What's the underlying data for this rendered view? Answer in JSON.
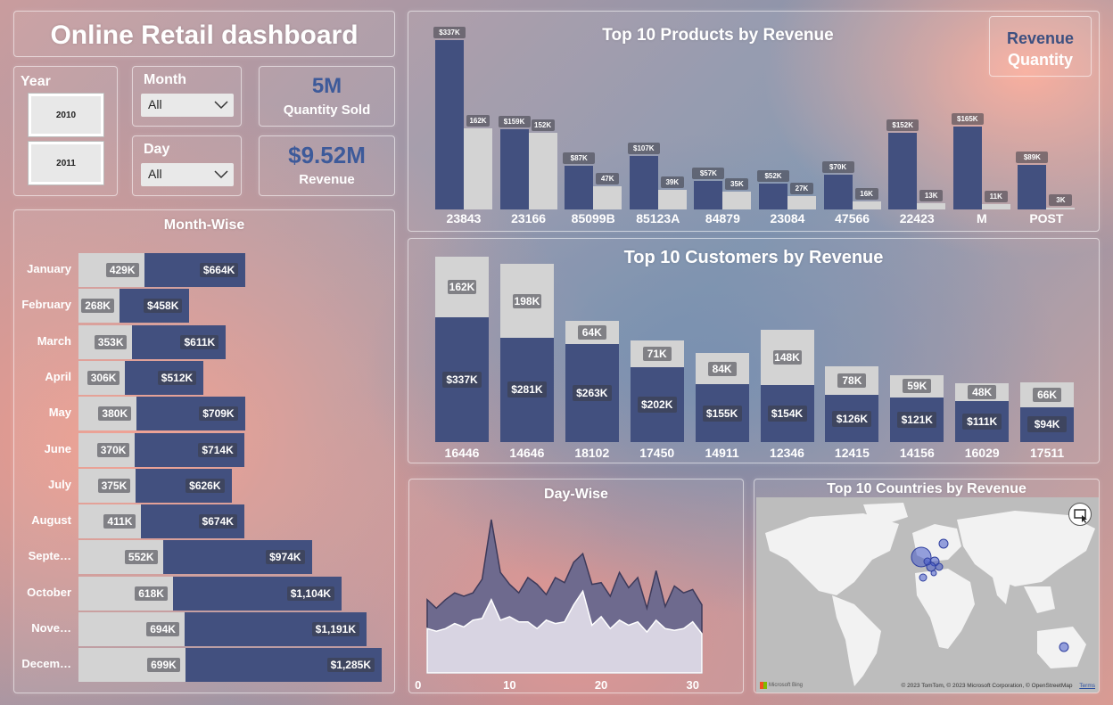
{
  "header": {
    "title": "Online Retail dashboard"
  },
  "colors": {
    "revenue": "#42507f",
    "quantity": "#d3d3d3",
    "kpi": "#3d5a9a"
  },
  "year_slicer": {
    "label": "Year",
    "options": [
      "2010",
      "2011"
    ]
  },
  "month_slicer": {
    "label": "Month",
    "value": "All"
  },
  "day_slicer": {
    "label": "Day",
    "value": "All"
  },
  "kpis": {
    "quantity": {
      "value": "5M",
      "label": "Quantity Sold"
    },
    "revenue": {
      "value": "$9.52M",
      "label": "Revenue"
    }
  },
  "toggle": {
    "revenue_label": "Revenue",
    "quantity_label": "Quantity"
  },
  "icons": {
    "dropdown": "chevron-down-icon",
    "focus": "focus-mode-icon"
  },
  "month_wise": {
    "title": "Month-Wise",
    "rows": [
      {
        "month": "January",
        "qty_label": "429K",
        "rev_label": "$664K",
        "qty": 429,
        "rev": 664
      },
      {
        "month": "February",
        "qty_label": "268K",
        "rev_label": "$458K",
        "qty": 268,
        "rev": 458
      },
      {
        "month": "March",
        "qty_label": "353K",
        "rev_label": "$611K",
        "qty": 353,
        "rev": 611
      },
      {
        "month": "April",
        "qty_label": "306K",
        "rev_label": "$512K",
        "qty": 306,
        "rev": 512
      },
      {
        "month": "May",
        "qty_label": "380K",
        "rev_label": "$709K",
        "qty": 380,
        "rev": 709
      },
      {
        "month": "June",
        "qty_label": "370K",
        "rev_label": "$714K",
        "qty": 370,
        "rev": 714
      },
      {
        "month": "July",
        "qty_label": "375K",
        "rev_label": "$626K",
        "qty": 375,
        "rev": 626
      },
      {
        "month": "August",
        "qty_label": "411K",
        "rev_label": "$674K",
        "qty": 411,
        "rev": 674
      },
      {
        "month": "Septe…",
        "qty_label": "552K",
        "rev_label": "$974K",
        "qty": 552,
        "rev": 974
      },
      {
        "month": "October",
        "qty_label": "618K",
        "rev_label": "$1,104K",
        "qty": 618,
        "rev": 1104
      },
      {
        "month": "Nove…",
        "qty_label": "694K",
        "rev_label": "$1,191K",
        "qty": 694,
        "rev": 1191
      },
      {
        "month": "Decem…",
        "qty_label": "699K",
        "rev_label": "$1,285K",
        "qty": 699,
        "rev": 1285
      }
    ]
  },
  "chart_data": [
    {
      "type": "bar",
      "title": "Top 10 Products by Revenue",
      "categories": [
        "23843",
        "23166",
        "85099B",
        "85123A",
        "84879",
        "23084",
        "47566",
        "22423",
        "M",
        "POST"
      ],
      "series": [
        {
          "name": "Revenue",
          "values": [
            337,
            159,
            87,
            107,
            57,
            52,
            70,
            152,
            165,
            89
          ],
          "labels": [
            "$337K",
            "$159K",
            "$87K",
            "$107K",
            "$57K",
            "$52K",
            "$70K",
            "$152K",
            "$165K",
            "$89K"
          ]
        },
        {
          "name": "Quantity",
          "values": [
            162,
            152,
            47,
            39,
            35,
            27,
            16,
            13,
            11,
            3
          ],
          "labels": [
            "162K",
            "152K",
            "47K",
            "39K",
            "35K",
            "27K",
            "16K",
            "13K",
            "11K",
            "3K"
          ]
        }
      ]
    },
    {
      "type": "bar",
      "title": "Top 10 Customers by Revenue",
      "categories": [
        "16446",
        "14646",
        "18102",
        "17450",
        "14911",
        "12346",
        "12415",
        "14156",
        "16029",
        "17511"
      ],
      "series": [
        {
          "name": "Revenue",
          "values": [
            337,
            281,
            263,
            202,
            155,
            154,
            126,
            121,
            111,
            94
          ],
          "labels": [
            "$337K",
            "$281K",
            "$263K",
            "$202K",
            "$155K",
            "$154K",
            "$126K",
            "$121K",
            "$111K",
            "$94K"
          ]
        },
        {
          "name": "Quantity",
          "values": [
            162,
            198,
            64,
            71,
            84,
            148,
            78,
            59,
            48,
            66
          ],
          "labels": [
            "162K",
            "198K",
            "64K",
            "71K",
            "84K",
            "148K",
            "78K",
            "59K",
            "48K",
            "66K"
          ]
        }
      ]
    },
    {
      "type": "area",
      "title": "Day-Wise",
      "x": [
        1,
        2,
        3,
        4,
        5,
        6,
        7,
        8,
        9,
        10,
        11,
        12,
        13,
        14,
        15,
        16,
        17,
        18,
        19,
        20,
        21,
        22,
        23,
        24,
        25,
        26,
        27,
        28,
        29,
        30,
        31
      ],
      "xticks": [
        "0",
        "10",
        "20",
        "30"
      ],
      "series": [
        {
          "name": "Revenue",
          "values": [
            430,
            380,
            430,
            470,
            450,
            470,
            550,
            900,
            590,
            520,
            470,
            560,
            520,
            460,
            560,
            530,
            650,
            700,
            520,
            530,
            450,
            590,
            500,
            560,
            380,
            600,
            390,
            510,
            470,
            490,
            400
          ]
        },
        {
          "name": "Quantity",
          "values": [
            260,
            245,
            260,
            290,
            270,
            310,
            320,
            430,
            310,
            330,
            300,
            300,
            260,
            310,
            290,
            300,
            400,
            480,
            280,
            330,
            260,
            310,
            280,
            300,
            240,
            310,
            260,
            250,
            260,
            300,
            230
          ]
        }
      ]
    },
    {
      "type": "map",
      "title": "Top 10 Countries by Revenue",
      "attribution": "© 2023 TomTom, © 2023 Microsoft Corporation, © OpenStreetMap",
      "terms": "Terms",
      "provider": "Microsoft Bing"
    }
  ]
}
